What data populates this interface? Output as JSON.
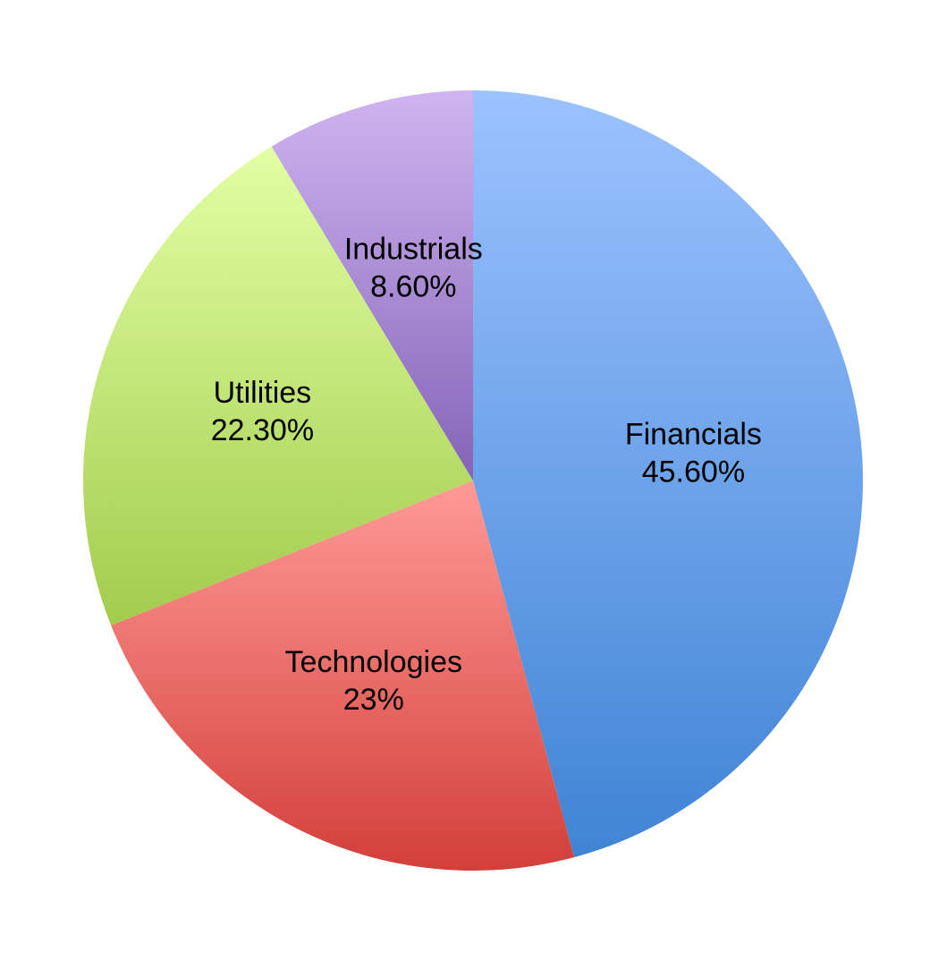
{
  "chart_data": {
    "type": "pie",
    "slices": [
      {
        "name": "Financials",
        "value": 45.6,
        "label": "45.60%",
        "color_light": "#9cc2ff",
        "color_dark": "#3f84d4"
      },
      {
        "name": "Technologies",
        "value": 23.0,
        "label": "23%",
        "color_light": "#ff9a96",
        "color_dark": "#d33f3a"
      },
      {
        "name": "Utilities",
        "value": 22.3,
        "label": "22.30%",
        "color_light": "#e2ffa4",
        "color_dark": "#a2cc4c"
      },
      {
        "name": "Industrials",
        "value": 8.6,
        "label": "8.60%",
        "color_light": "#cfb4f0",
        "color_dark": "#8463b7"
      }
    ],
    "start_angle": "12 o'clock",
    "direction": "clockwise",
    "legend": "none"
  }
}
